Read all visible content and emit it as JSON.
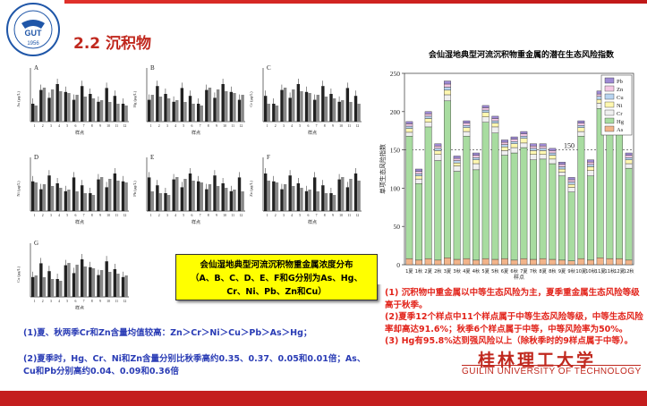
{
  "header": {
    "title": "2.2 沉积物",
    "logo_year": "1956"
  },
  "left_charts": {
    "x_label": "样点",
    "panels": [
      {
        "letter": "A",
        "ylabel": "As (μg/L)"
      },
      {
        "letter": "B",
        "ylabel": "Hg (μg/L)"
      },
      {
        "letter": "C",
        "ylabel": "Cr (μg/L)"
      },
      {
        "letter": "D",
        "ylabel": "Ni (μg/L)"
      },
      {
        "letter": "E",
        "ylabel": "Pb (μg/L)"
      },
      {
        "letter": "F",
        "ylabel": "Zn (μg/L)"
      },
      {
        "letter": "G",
        "ylabel": "Cu (μg/L)"
      }
    ],
    "ticks": [
      "1",
      "2",
      "3",
      "4",
      "5",
      "6",
      "7",
      "8",
      "9",
      "10",
      "11",
      "12"
    ]
  },
  "caption": {
    "line1": "会仙湿地典型河流沉积物重金属浓度分布",
    "line2": "（A、B、C、D、E、F和G分别为As、Hg、",
    "line3": "Cr、Ni、Pb、Zn和Cu）"
  },
  "notes": {
    "n1": "(1)夏、秋两季Cr和Zn含量均值较高：Zn＞Cr＞Ni＞Cu＞Pb＞As＞Hg；",
    "n2": "(2)夏季时，Hg、Cr、Ni和Zn含量分别比秋季高约0.35、0.37、0.05和0.01倍；As、Cu和Pb分别高约0.04、0.09和0.36倍"
  },
  "right_notes": {
    "r1": "(1) 沉积物中重金属以中等生态风险为主，夏季重金属生态风险等级高于秋季。",
    "r2": "(2)夏季12个样点中11个样点属于中等生态风险等级，中等生态风险率却高达91.6%；秋季6个样点属于中等，中等风险率为50%。",
    "r3": "(3) Hg有95.8%达到强风险以上（除秋季时的9样点属于中等）。"
  },
  "footer": {
    "cn": "桂林理工大学",
    "en": "GUILIN UNIVERSITY OF TECHNOLOGY"
  },
  "chart_data": {
    "type": "bar",
    "title": "会仙湿地典型河流沉积物重金属的潜在生态风险指数",
    "ylabel": "单项生态风险指数",
    "xlabel": "样点",
    "ylim": [
      0,
      250
    ],
    "yticks": [
      0,
      50,
      100,
      150,
      200,
      250
    ],
    "reference_line": 150,
    "reference_label": "150",
    "categories": [
      "1夏",
      "1秋",
      "2夏",
      "2秋",
      "3夏",
      "3秋",
      "4夏",
      "4秋",
      "5夏",
      "5秋",
      "6夏",
      "6秋",
      "7夏",
      "7秋",
      "8夏",
      "8秋",
      "9夏",
      "9秋",
      "10夏",
      "10秋",
      "11夏",
      "11秋",
      "12夏",
      "12秋"
    ],
    "series": [
      {
        "name": "As",
        "color": "#f2b48a",
        "values": [
          8,
          6,
          8,
          6,
          9,
          7,
          8,
          6,
          8,
          7,
          8,
          6,
          8,
          7,
          8,
          7,
          6,
          5,
          8,
          6,
          9,
          8,
          8,
          6
        ]
      },
      {
        "name": "Hg",
        "color": "#a8dca0",
        "values": [
          160,
          100,
          172,
          130,
          205,
          115,
          160,
          118,
          178,
          165,
          135,
          140,
          145,
          130,
          130,
          125,
          110,
          90,
          160,
          110,
          195,
          175,
          165,
          120
        ]
      },
      {
        "name": "Cr",
        "color": "#f0f0f0",
        "values": [
          5,
          6,
          6,
          8,
          8,
          7,
          6,
          8,
          7,
          8,
          6,
          7,
          6,
          7,
          6,
          6,
          5,
          6,
          6,
          7,
          7,
          6,
          6,
          6
        ]
      },
      {
        "name": "Ni",
        "color": "#fff7b0",
        "values": [
          5,
          4,
          5,
          5,
          6,
          4,
          5,
          5,
          6,
          5,
          5,
          5,
          6,
          5,
          5,
          5,
          4,
          4,
          5,
          5,
          5,
          5,
          5,
          5
        ]
      },
      {
        "name": "Cu",
        "color": "#b8d4f0",
        "values": [
          3,
          3,
          3,
          3,
          4,
          3,
          3,
          3,
          3,
          3,
          3,
          3,
          3,
          3,
          3,
          3,
          3,
          3,
          3,
          3,
          4,
          4,
          3,
          3
        ]
      },
      {
        "name": "Zn",
        "color": "#f4c8e4",
        "values": [
          3,
          3,
          3,
          3,
          4,
          3,
          3,
          3,
          3,
          3,
          3,
          3,
          3,
          3,
          3,
          3,
          3,
          3,
          3,
          3,
          3,
          3,
          3,
          3
        ]
      },
      {
        "name": "Pb",
        "color": "#9e8ad4",
        "values": [
          3,
          3,
          3,
          3,
          4,
          3,
          3,
          3,
          3,
          3,
          3,
          3,
          3,
          3,
          3,
          3,
          3,
          3,
          3,
          3,
          4,
          4,
          3,
          3
        ]
      }
    ],
    "legend_position": "top-right"
  }
}
